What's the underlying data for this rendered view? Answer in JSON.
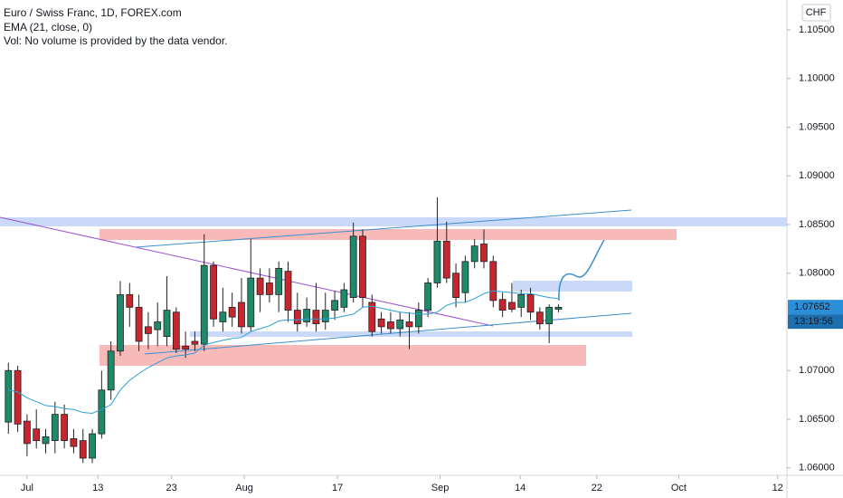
{
  "chart_data": {
    "type": "candlestick",
    "title": "Euro / Swiss Franc, 1D, FOREX.com",
    "subtitle": "EMA (21, close, 0)",
    "note": "Vol: No volume is provided by the data vendor.",
    "currency": "CHF",
    "x": [
      -2,
      -1,
      0,
      1,
      2,
      3,
      4,
      5,
      6,
      7,
      8,
      9,
      10,
      11,
      12,
      13,
      14,
      15,
      16,
      17,
      18,
      19,
      20,
      21,
      22,
      23,
      24,
      25,
      26,
      27,
      28,
      29,
      30,
      31,
      32,
      33,
      34,
      35,
      36,
      37,
      38,
      39,
      40,
      41,
      42,
      43,
      44,
      45,
      46,
      47,
      48,
      49,
      50,
      51,
      52,
      53,
      54,
      55,
      56,
      57
    ],
    "open": [
      1.0647,
      1.07,
      1.0648,
      1.064,
      1.0625,
      1.0628,
      1.0655,
      1.063,
      1.0628,
      1.061,
      1.0635,
      1.068,
      1.072,
      1.0778,
      1.0765,
      1.0745,
      1.0742,
      1.0735,
      1.076,
      1.0725,
      1.073,
      1.0727,
      1.0808,
      1.075,
      1.0765,
      1.077,
      1.0745,
      1.0795,
      1.079,
      1.0778,
      1.0802,
      1.0762,
      1.075,
      1.0762,
      1.075,
      1.0762,
      1.0765,
      1.0775,
      1.0838,
      1.077,
      1.0753,
      1.075,
      1.0743,
      1.075,
      1.0745,
      1.0762,
      1.079,
      1.0833,
      1.08,
      1.078,
      1.0812,
      1.083,
      1.0812,
      1.0773,
      1.077,
      1.0765,
      1.0778,
      1.076,
      1.0748,
      1.0763
    ],
    "high": [
      1.0708,
      1.0705,
      1.0655,
      1.066,
      1.064,
      1.0668,
      1.0665,
      1.064,
      1.064,
      1.064,
      1.07,
      1.073,
      1.0792,
      1.079,
      1.0778,
      1.076,
      1.077,
      1.0797,
      1.0765,
      1.074,
      1.074,
      1.084,
      1.0812,
      1.0785,
      1.078,
      1.0795,
      1.0835,
      1.0805,
      1.0805,
      1.0812,
      1.0812,
      1.078,
      1.0775,
      1.079,
      1.078,
      1.0782,
      1.079,
      1.0852,
      1.0845,
      1.0778,
      1.076,
      1.076,
      1.076,
      1.076,
      1.077,
      1.0795,
      1.0878,
      1.0853,
      1.081,
      1.0818,
      1.0835,
      1.0845,
      1.0818,
      1.078,
      1.079,
      1.0783,
      1.0785,
      1.0765,
      1.0768,
      1.0768
    ],
    "low": [
      1.0635,
      1.0637,
      1.0612,
      1.062,
      1.0615,
      1.0615,
      1.062,
      1.0615,
      1.0605,
      1.0605,
      1.063,
      1.067,
      1.0715,
      1.0745,
      1.072,
      1.0722,
      1.0725,
      1.0725,
      1.0718,
      1.0713,
      1.072,
      1.072,
      1.0745,
      1.074,
      1.0745,
      1.0738,
      1.074,
      1.076,
      1.077,
      1.076,
      1.075,
      1.074,
      1.0745,
      1.074,
      1.0742,
      1.0752,
      1.076,
      1.077,
      1.0765,
      1.0735,
      1.0738,
      1.0738,
      1.0735,
      1.0722,
      1.0738,
      1.0755,
      1.0785,
      1.079,
      1.0765,
      1.077,
      1.0805,
      1.0805,
      1.0765,
      1.0755,
      1.076,
      1.0755,
      1.0752,
      1.0742,
      1.0728,
      1.076
    ],
    "close": [
      1.07,
      1.0645,
      1.0625,
      1.0628,
      1.0632,
      1.0655,
      1.0628,
      1.0622,
      1.061,
      1.0635,
      1.068,
      1.072,
      1.0778,
      1.0765,
      1.073,
      1.0738,
      1.075,
      1.0762,
      1.0722,
      1.0722,
      1.0727,
      1.0808,
      1.0753,
      1.076,
      1.0755,
      1.0745,
      1.0795,
      1.0778,
      1.0778,
      1.0805,
      1.0762,
      1.0748,
      1.0763,
      1.0748,
      1.0762,
      1.0772,
      1.0783,
      1.0838,
      1.0775,
      1.074,
      1.0745,
      1.0743,
      1.0752,
      1.0745,
      1.0762,
      1.079,
      1.0833,
      1.0795,
      1.0775,
      1.0812,
      1.0828,
      1.0812,
      1.0772,
      1.0762,
      1.0763,
      1.0778,
      1.076,
      1.0748,
      1.0765,
      1.0765
    ],
    "up_color": "#1e8a6a",
    "down_color": "#c8262f",
    "ema": {
      "color": "#2a9fd8",
      "values": [
        1.068,
        1.0678,
        1.0672,
        1.0668,
        1.0664,
        1.0663,
        1.0661,
        1.066,
        1.0657,
        1.0656,
        1.066,
        1.0665,
        1.068,
        1.069,
        1.0697,
        1.0703,
        1.0708,
        1.0713,
        1.0715,
        1.0716,
        1.0718,
        1.0726,
        1.0729,
        1.0731,
        1.0733,
        1.0734,
        1.074,
        1.0743,
        1.0746,
        1.0751,
        1.0752,
        1.0752,
        1.0753,
        1.0753,
        1.0753,
        1.0754,
        1.0756,
        1.0758,
        1.0765,
        1.0766,
        1.0764,
        1.0762,
        1.076,
        1.0759,
        1.0758,
        1.0758,
        1.076,
        1.0767,
        1.077,
        1.077,
        1.0774,
        1.0779,
        1.0782,
        1.0781,
        1.078,
        1.0779,
        1.0779,
        1.0777,
        1.0775,
        1.0774
      ]
    },
    "xlim": [
      -2.9,
      81.5
    ],
    "xticks": [
      {
        "value": 0,
        "label": "Jul"
      },
      {
        "value": 7.6,
        "label": "13"
      },
      {
        "value": 15.5,
        "label": "23"
      },
      {
        "value": 23.3,
        "label": "Aug"
      },
      {
        "value": 33.3,
        "label": "17"
      },
      {
        "value": 44.3,
        "label": "Sep"
      },
      {
        "value": 52.9,
        "label": "14"
      },
      {
        "value": 61.1,
        "label": "22"
      },
      {
        "value": 69.9,
        "label": "Oct"
      },
      {
        "value": 80.5,
        "label": "12"
      }
    ],
    "ylim": [
      1.05923,
      1.10807
    ],
    "yticks": [
      {
        "value": 1.06,
        "label": "1.06000"
      },
      {
        "value": 1.065,
        "label": "1.06500"
      },
      {
        "value": 1.07,
        "label": "1.07000"
      },
      {
        "value": 1.075,
        "label": "1.07500"
      },
      {
        "value": 1.08,
        "label": "1.08000"
      },
      {
        "value": 1.085,
        "label": "1.08500"
      },
      {
        "value": 1.09,
        "label": "1.09000"
      },
      {
        "value": 1.095,
        "label": "1.09500"
      },
      {
        "value": 1.1,
        "label": "1.10000"
      },
      {
        "value": 1.105,
        "label": "1.10500"
      }
    ],
    "last_price": 1.07652,
    "countdown": "13:19:56"
  }
}
